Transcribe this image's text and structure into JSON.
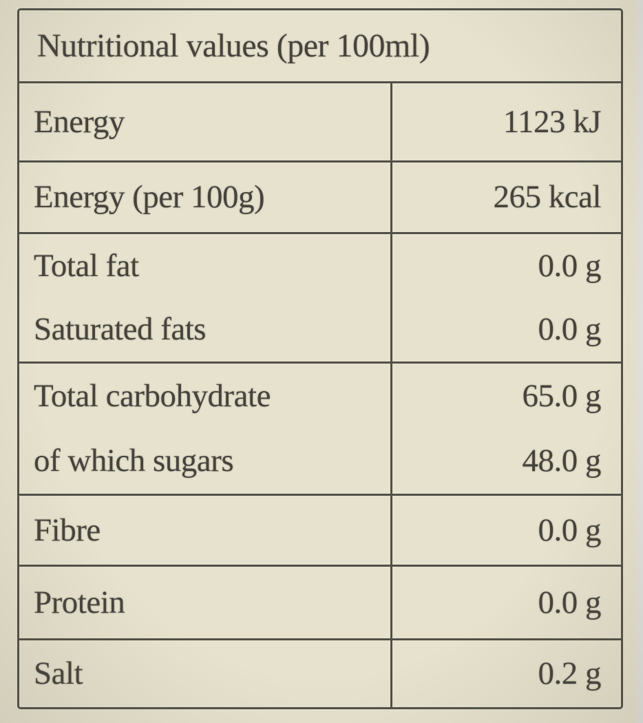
{
  "nutrition": {
    "title": "Nutritional values (per 100ml)",
    "sections": [
      {
        "rows": [
          {
            "label": "Energy",
            "value": "1123 kJ"
          }
        ]
      },
      {
        "rows": [
          {
            "label": "Energy (per 100g)",
            "value": "265 kcal"
          }
        ]
      },
      {
        "rows": [
          {
            "label": "Total fat",
            "value": "0.0 g"
          },
          {
            "label": "Saturated fats",
            "value": "0.0 g"
          }
        ]
      },
      {
        "rows": [
          {
            "label": "Total carbohydrate",
            "value": "65.0 g"
          },
          {
            "label": "of which sugars",
            "value": "48.0 g"
          }
        ]
      },
      {
        "rows": [
          {
            "label": "Fibre",
            "value": "0.0 g"
          }
        ]
      },
      {
        "rows": [
          {
            "label": "Protein",
            "value": "0.0 g"
          }
        ]
      },
      {
        "rows": [
          {
            "label": "Salt",
            "value": "0.2 g"
          }
        ]
      }
    ]
  },
  "colors": {
    "background": "#e6e2ce",
    "table_line": "#514f46",
    "text": "#45433b",
    "right_edge_strip": "#e3e4e0"
  }
}
